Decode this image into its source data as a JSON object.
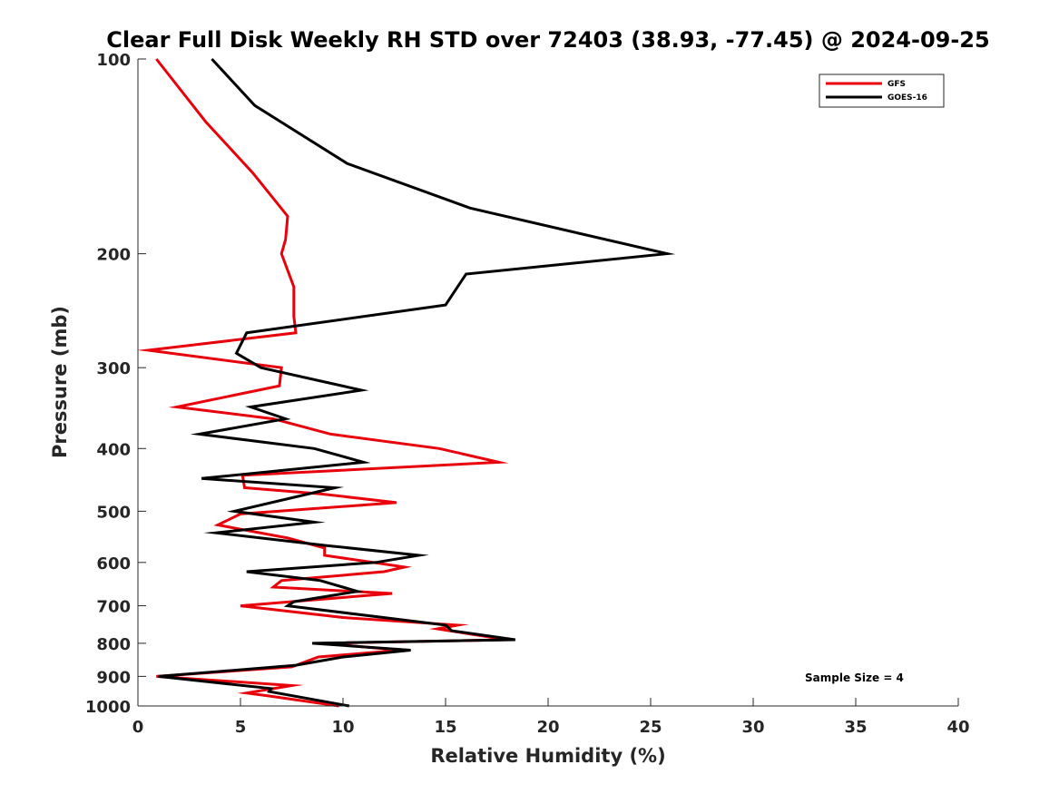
{
  "chart_data": {
    "type": "line",
    "title": "Clear Full Disk Weekly RH STD over 72403 (38.93, -77.45) @ 2024-09-25",
    "xlabel": "Relative Humidity (%)",
    "ylabel": "Pressure (mb)",
    "xlim": [
      0,
      40
    ],
    "ylim": [
      1000,
      100
    ],
    "y_scale": "log",
    "x_ticks": [
      0,
      5,
      10,
      15,
      20,
      25,
      30,
      35,
      40
    ],
    "x_tick_labels": [
      "0",
      "5",
      "10",
      "15",
      "20",
      "25",
      "30",
      "35",
      "40"
    ],
    "y_ticks": [
      100,
      200,
      300,
      400,
      500,
      600,
      700,
      800,
      900,
      1000
    ],
    "y_tick_labels": [
      "100",
      "200",
      "300",
      "400",
      "500",
      "600",
      "700",
      "800",
      "900",
      "1000"
    ],
    "grid": false,
    "legend_position": "top-right",
    "annotation": "Sample Size = 4",
    "series": [
      {
        "name": "GFS",
        "color": "#e8000b",
        "points": [
          [
            0.9,
            100
          ],
          [
            3.3,
            125
          ],
          [
            5.6,
            150
          ],
          [
            7.3,
            175
          ],
          [
            7.2,
            190
          ],
          [
            7.0,
            200
          ],
          [
            7.6,
            225
          ],
          [
            7.6,
            250
          ],
          [
            7.7,
            265
          ],
          [
            0.5,
            282
          ],
          [
            7.0,
            300
          ],
          [
            6.9,
            320
          ],
          [
            1.9,
            345
          ],
          [
            6.6,
            360
          ],
          [
            9.4,
            380
          ],
          [
            14.7,
            400
          ],
          [
            17.6,
            420
          ],
          [
            5.1,
            440
          ],
          [
            5.2,
            460
          ],
          [
            8.9,
            470
          ],
          [
            12.6,
            485
          ],
          [
            5.0,
            505
          ],
          [
            3.9,
            525
          ],
          [
            7.3,
            550
          ],
          [
            9.1,
            570
          ],
          [
            9.1,
            585
          ],
          [
            13.0,
            610
          ],
          [
            12.0,
            620
          ],
          [
            7.0,
            640
          ],
          [
            6.6,
            655
          ],
          [
            12.4,
            670
          ],
          [
            5.0,
            700
          ],
          [
            10.0,
            730
          ],
          [
            15.6,
            750
          ],
          [
            14.6,
            760
          ],
          [
            18.0,
            790
          ],
          [
            9.0,
            800
          ],
          [
            12.8,
            820
          ],
          [
            8.8,
            840
          ],
          [
            7.5,
            870
          ],
          [
            0.9,
            900
          ],
          [
            7.5,
            930
          ],
          [
            5.3,
            955
          ],
          [
            6.4,
            965
          ],
          [
            9.8,
            1000
          ]
        ]
      },
      {
        "name": "GOES-16",
        "color": "#000000",
        "points": [
          [
            3.6,
            100
          ],
          [
            5.7,
            118
          ],
          [
            10.2,
            145
          ],
          [
            16.2,
            170
          ],
          [
            21.2,
            185
          ],
          [
            25.8,
            200
          ],
          [
            16.0,
            215
          ],
          [
            15.0,
            240
          ],
          [
            5.3,
            265
          ],
          [
            4.8,
            285
          ],
          [
            6.0,
            300
          ],
          [
            10.9,
            325
          ],
          [
            5.5,
            345
          ],
          [
            7.2,
            360
          ],
          [
            3.0,
            380
          ],
          [
            8.6,
            400
          ],
          [
            11.0,
            420
          ],
          [
            3.1,
            445
          ],
          [
            9.6,
            460
          ],
          [
            4.7,
            500
          ],
          [
            8.6,
            520
          ],
          [
            3.8,
            540
          ],
          [
            9.2,
            565
          ],
          [
            13.7,
            585
          ],
          [
            11.6,
            600
          ],
          [
            5.3,
            620
          ],
          [
            8.9,
            640
          ],
          [
            10.7,
            665
          ],
          [
            7.6,
            690
          ],
          [
            7.3,
            700
          ],
          [
            15.0,
            750
          ],
          [
            15.3,
            765
          ],
          [
            18.4,
            790
          ],
          [
            8.5,
            800
          ],
          [
            13.3,
            820
          ],
          [
            10.0,
            840
          ],
          [
            7.7,
            865
          ],
          [
            1.0,
            900
          ],
          [
            6.5,
            940
          ],
          [
            6.4,
            950
          ],
          [
            10.3,
            1000
          ]
        ]
      }
    ]
  }
}
